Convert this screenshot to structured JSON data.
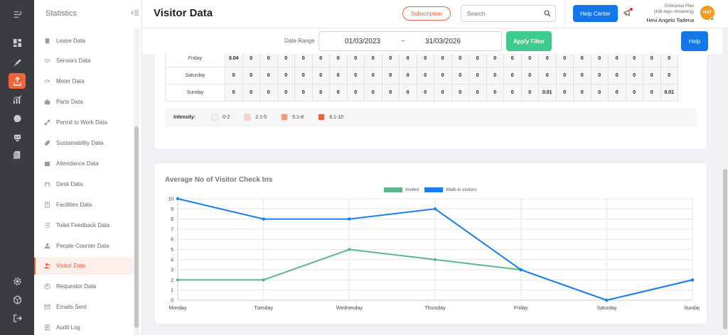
{
  "sidebar": {
    "title": "Statistics",
    "items": [
      {
        "label": "Lease Data",
        "icon": "file-icon"
      },
      {
        "label": "Sensors Data",
        "icon": "sensor-icon"
      },
      {
        "label": "Meter Data",
        "icon": "gauge-icon"
      },
      {
        "label": "Parts Data",
        "icon": "puzzle-icon"
      },
      {
        "label": "Permit to Work Data",
        "icon": "link-icon"
      },
      {
        "label": "Sustainability Data",
        "icon": "leaf-icon"
      },
      {
        "label": "Attendance Data",
        "icon": "calendar-check-icon"
      },
      {
        "label": "Desk Data",
        "icon": "desk-icon"
      },
      {
        "label": "Facilities Data",
        "icon": "building-icon"
      },
      {
        "label": "Toilet Feedback Data",
        "icon": "list-icon"
      },
      {
        "label": "People Counter Data",
        "icon": "counter-icon"
      },
      {
        "label": "Visitor Data",
        "icon": "visitor-icon",
        "active": true
      },
      {
        "label": "Requestor Data",
        "icon": "user-circle-icon"
      },
      {
        "label": "Emails Sent",
        "icon": "mail-icon"
      },
      {
        "label": "Audit Log",
        "icon": "log-icon"
      }
    ]
  },
  "header": {
    "title": "Visitor Data",
    "subscription_label": "Subscription",
    "search_placeholder": "Search",
    "help_center_label": "Help Center",
    "plan_line1": "Enterprise Plan",
    "plan_line2": "(438 days remaining)",
    "user_name": "Hevi Angelo Tadena",
    "avatar_initials": "HAT"
  },
  "filter": {
    "date_range_label": "Date Range",
    "start_date": "01/03/2023",
    "separator": "~",
    "end_date": "31/03/2026",
    "apply_label": "Apply Filter",
    "help_label": "Help"
  },
  "heatmap": {
    "rows": [
      {
        "day": "Friday",
        "values": [
          "0.04",
          "0",
          "0",
          "0",
          "0",
          "0",
          "0",
          "0",
          "0",
          "0",
          "0",
          "0",
          "0",
          "0",
          "0",
          "0",
          "0",
          "0",
          "0",
          "0",
          "0",
          "0",
          "0",
          "0",
          "0",
          "0"
        ]
      },
      {
        "day": "Saturday",
        "values": [
          "0",
          "0",
          "0",
          "0",
          "0",
          "0",
          "0",
          "0",
          "0",
          "0",
          "0",
          "0",
          "0",
          "0",
          "0",
          "0",
          "0",
          "0",
          "0",
          "0",
          "0",
          "0",
          "0",
          "0",
          "0",
          "0"
        ]
      },
      {
        "day": "Sunday",
        "values": [
          "0",
          "0",
          "0",
          "0",
          "0",
          "0",
          "0",
          "0",
          "0",
          "0",
          "0",
          "0",
          "0",
          "0",
          "0",
          "0",
          "0",
          "0",
          "0.01",
          "0",
          "0",
          "0",
          "0",
          "0",
          "0",
          "0.01"
        ]
      }
    ],
    "intensity_label": "Intensity:",
    "ranges": [
      {
        "label": "0-2",
        "color": "#f0f0f0"
      },
      {
        "label": "2.1-5",
        "color": "#fbd3c2"
      },
      {
        "label": "5.1-8",
        "color": "#f59a78"
      },
      {
        "label": "8.1-10",
        "color": "#f0623a"
      }
    ]
  },
  "chart_data": {
    "type": "line",
    "title": "Average No of Visitor Check Ins",
    "categories": [
      "Monday",
      "Tuesday",
      "Wednesday",
      "Thursday",
      "Friday",
      "Saturday",
      "Sunday"
    ],
    "series": [
      {
        "name": "Invited",
        "color": "#5cb88b",
        "values": [
          2,
          2,
          5,
          4,
          3,
          0,
          2
        ]
      },
      {
        "name": "Walk-in visitors",
        "color": "#1a7ff0",
        "values": [
          10,
          8,
          8,
          9,
          3,
          0,
          2
        ]
      }
    ],
    "ylim": [
      0,
      10
    ],
    "yticks": [
      "0",
      "1",
      "2",
      "3",
      "4",
      "5",
      "6",
      "7",
      "8",
      "9",
      "10"
    ],
    "grid": true,
    "legend": "top-center"
  }
}
